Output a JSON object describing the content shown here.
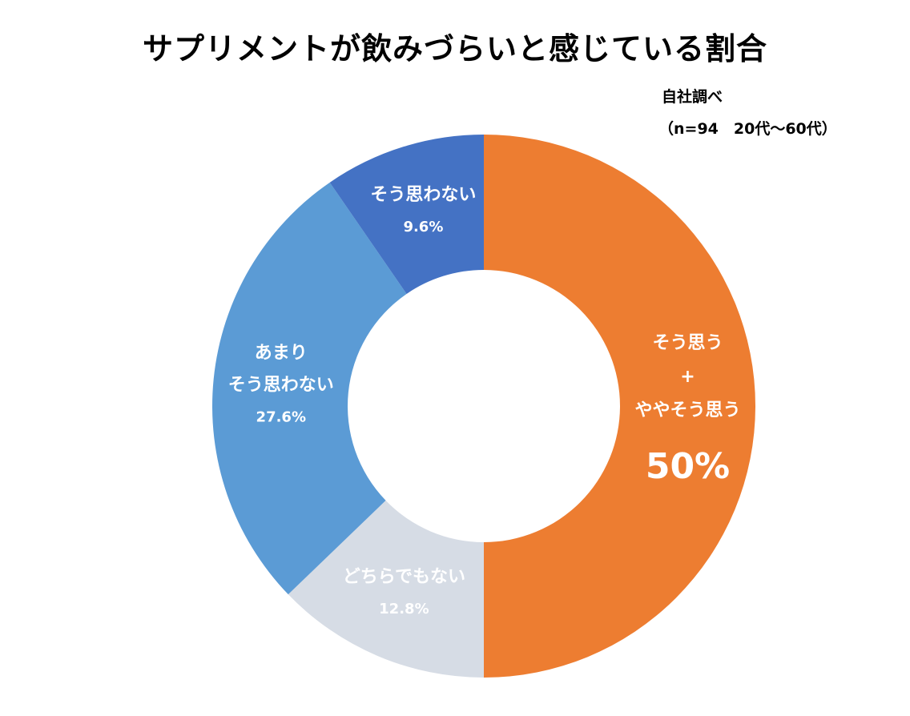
{
  "chart_data": {
    "type": "pie",
    "subtype": "donut",
    "title": "サプリメントが飲みづらいと感じている割合",
    "source_note": "自社調べ",
    "sample_note": "（n=94　20代～60代）",
    "start": "top",
    "direction": "clockwise",
    "slices": [
      {
        "lines": [
          "そう思う",
          "+",
          "ややそう思う"
        ],
        "value": 50,
        "value_label": "50%",
        "color": "#ED7D31"
      },
      {
        "lines": [
          "どちらでもない"
        ],
        "value": 12.8,
        "value_label": "12.8%",
        "color": "#D6DCE5"
      },
      {
        "lines": [
          "あまり",
          "そう思わない"
        ],
        "value": 27.6,
        "value_label": "27.6%",
        "color": "#5B9BD5"
      },
      {
        "lines": [
          "そう思わない"
        ],
        "value": 9.6,
        "value_label": "9.6%",
        "color": "#4472C4"
      }
    ]
  }
}
